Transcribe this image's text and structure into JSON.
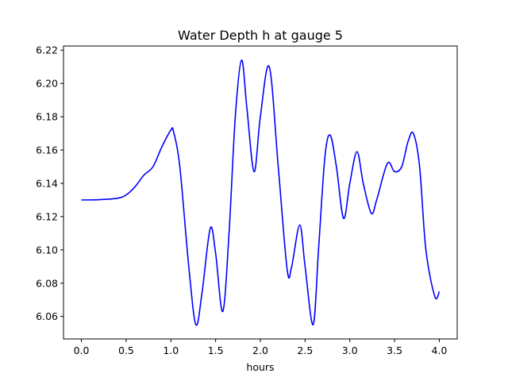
{
  "chart_data": {
    "type": "line",
    "title": "Water Depth h at gauge 5",
    "xlabel": "hours",
    "ylabel": "",
    "xlim": [
      -0.2,
      4.2
    ],
    "ylim": [
      6.0465,
      6.2225
    ],
    "xticks": [
      "0.0",
      "0.5",
      "1.0",
      "1.5",
      "2.0",
      "2.5",
      "3.0",
      "3.5",
      "4.0"
    ],
    "yticks": [
      "6.06",
      "6.08",
      "6.10",
      "6.12",
      "6.14",
      "6.16",
      "6.18",
      "6.20",
      "6.22"
    ],
    "grid": false,
    "series": [
      {
        "name": "",
        "color": "#0000ff",
        "x": [
          0.0,
          0.2,
          0.4,
          0.5,
          0.6,
          0.7,
          0.8,
          0.9,
          1.0,
          1.03,
          1.1,
          1.2,
          1.28,
          1.35,
          1.44,
          1.5,
          1.58,
          1.65,
          1.72,
          1.79,
          1.85,
          1.93,
          2.0,
          2.1,
          2.2,
          2.3,
          2.35,
          2.44,
          2.5,
          2.59,
          2.65,
          2.72,
          2.78,
          2.85,
          2.93,
          3.0,
          3.08,
          3.15,
          3.24,
          3.3,
          3.42,
          3.5,
          3.58,
          3.65,
          3.71,
          3.78,
          3.85,
          3.95,
          4.0
        ],
        "y": [
          6.13,
          6.1302,
          6.131,
          6.133,
          6.138,
          6.145,
          6.15,
          6.162,
          6.172,
          6.171,
          6.15,
          6.09,
          6.055,
          6.075,
          6.113,
          6.098,
          6.063,
          6.11,
          6.18,
          6.214,
          6.185,
          6.147,
          6.18,
          6.21,
          6.15,
          6.088,
          6.09,
          6.115,
          6.09,
          6.055,
          6.1,
          6.155,
          6.169,
          6.15,
          6.119,
          6.14,
          6.159,
          6.14,
          6.122,
          6.13,
          6.152,
          6.147,
          6.15,
          6.165,
          6.17,
          6.15,
          6.1,
          6.072,
          6.075
        ]
      }
    ]
  }
}
